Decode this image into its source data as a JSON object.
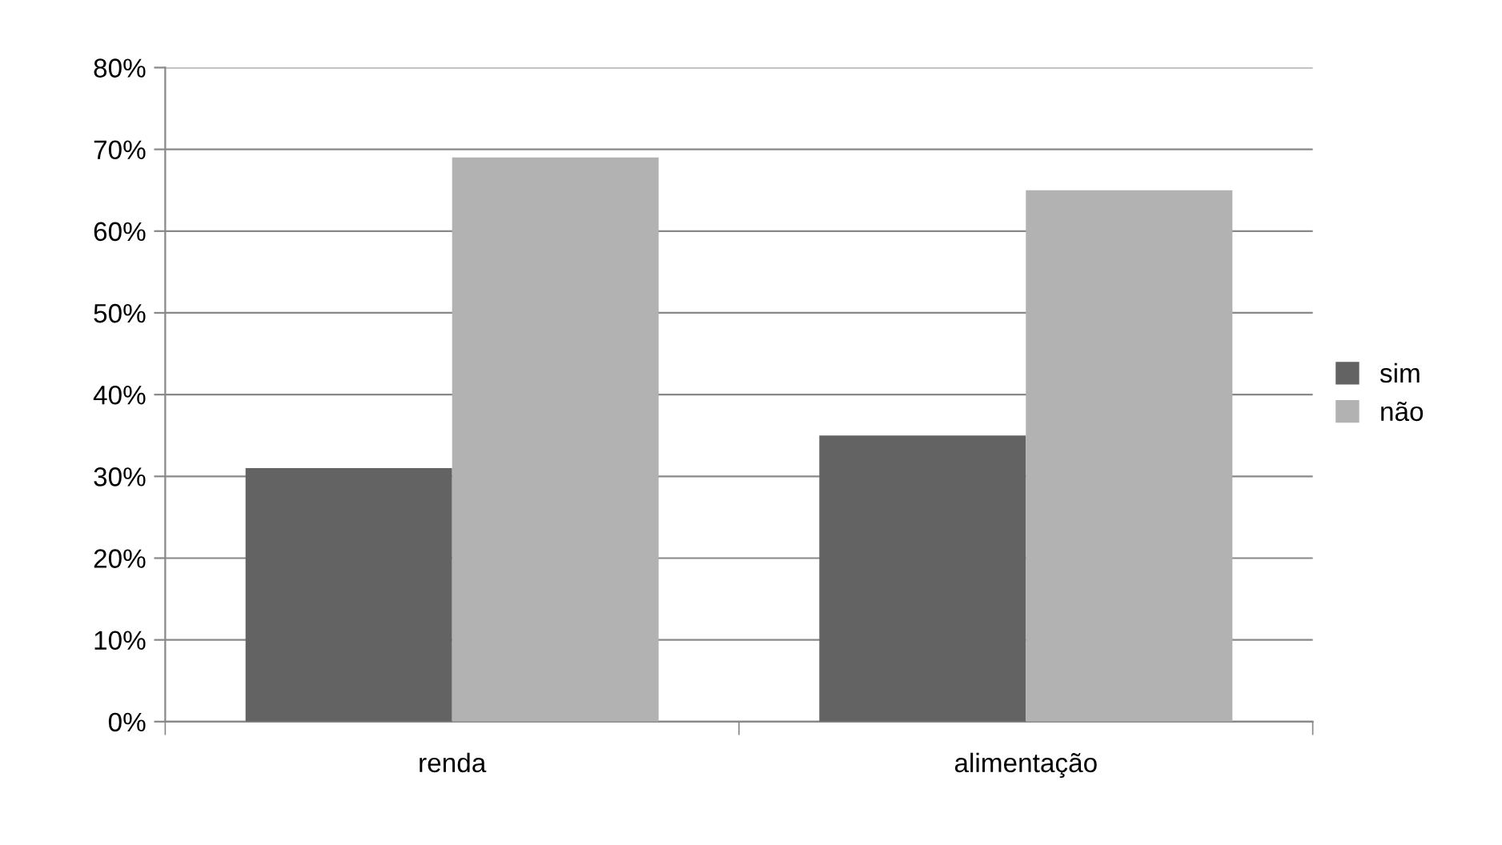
{
  "chart_data": {
    "type": "bar",
    "categories": [
      "renda",
      "alimentação"
    ],
    "series": [
      {
        "name": "sim",
        "color": "#636363",
        "values": [
          31,
          35
        ]
      },
      {
        "name": "não",
        "color": "#b2b2b2",
        "values": [
          69,
          65
        ]
      }
    ],
    "ylim": [
      0,
      80
    ],
    "yticks": [
      {
        "value": 0,
        "label": "0%"
      },
      {
        "value": 10,
        "label": "10%"
      },
      {
        "value": 20,
        "label": "20%"
      },
      {
        "value": 30,
        "label": "30%"
      },
      {
        "value": 40,
        "label": "40%"
      },
      {
        "value": 50,
        "label": "50%"
      },
      {
        "value": 60,
        "label": "60%"
      },
      {
        "value": 70,
        "label": "70%"
      },
      {
        "value": 80,
        "label": "80%"
      }
    ],
    "grid": "y",
    "legend": "right"
  }
}
